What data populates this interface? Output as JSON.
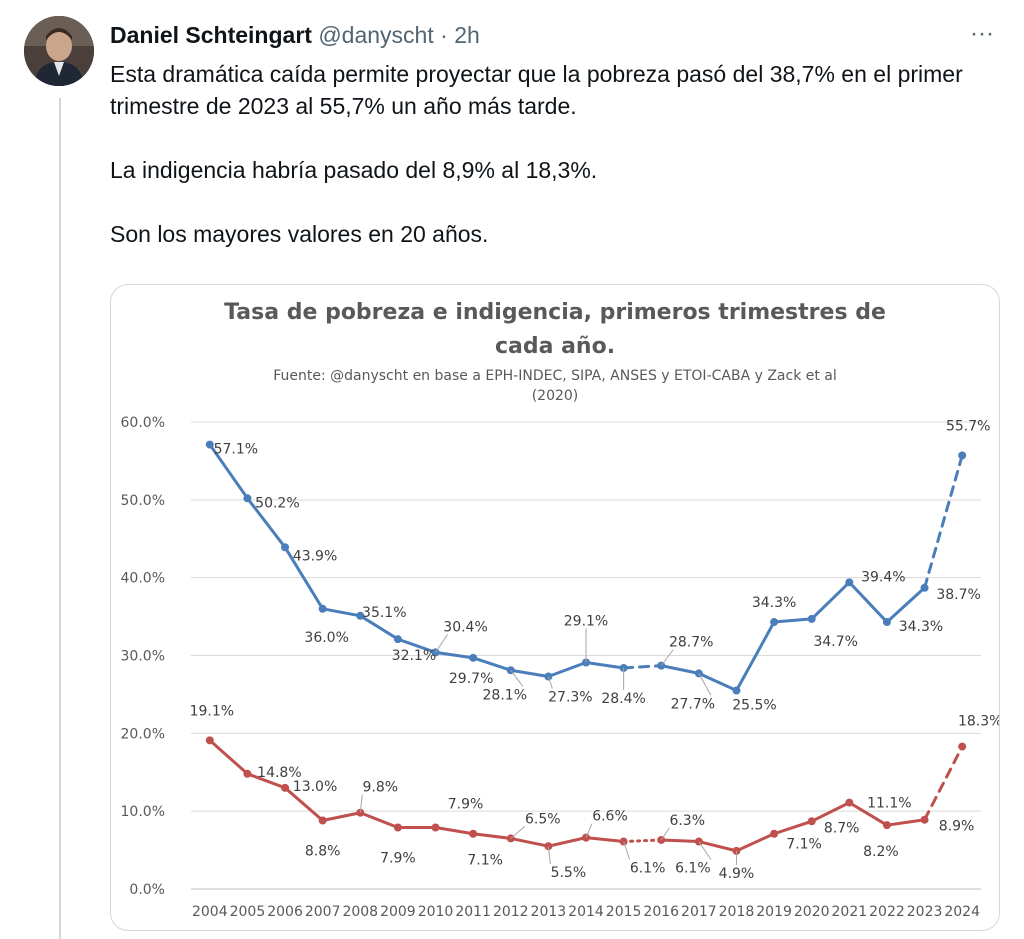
{
  "tweet": {
    "author_name": "Daniel Schteingart",
    "handle": "@danyscht",
    "separator": "·",
    "time": "2h",
    "more_label": "···",
    "paragraphs": [
      "Esta dramática caída permite proyectar que la pobreza pasó del 38,7% en el primer trimestre de 2023 al 55,7% un año más tarde.",
      "La indigencia habría pasado del 8,9% al 18,3%.",
      "Son los mayores valores en 20 años."
    ]
  },
  "colors": {
    "poverty": "#4a7ebb",
    "indigence": "#c0504d",
    "grid": "#d9d9d9",
    "title": "#595959"
  },
  "chart_data": {
    "type": "line",
    "title_lines": [
      "Tasa de pobreza e indigencia, primeros trimestres de",
      "cada año."
    ],
    "subtitle_lines": [
      "Fuente: @danyscht en base a EPH-INDEC, SIPA, ANSES y ETOI-CABA y Zack et al",
      "(2020)"
    ],
    "xlabel": "",
    "ylabel": "",
    "ylim": [
      0,
      60
    ],
    "yticks": [
      "0.0%",
      "10.0%",
      "20.0%",
      "30.0%",
      "40.0%",
      "50.0%",
      "60.0%"
    ],
    "categories": [
      "2004",
      "2005",
      "2006",
      "2007",
      "2008",
      "2009",
      "2010",
      "2011",
      "2012",
      "2013",
      "2014",
      "2015",
      "2016",
      "2017",
      "2018",
      "2019",
      "2020",
      "2021",
      "2022",
      "2023",
      "2024"
    ],
    "legend": "none",
    "grid": true,
    "series": [
      {
        "key": "poverty",
        "values": [
          57.1,
          50.2,
          43.9,
          36.0,
          35.1,
          32.1,
          30.4,
          29.7,
          28.1,
          27.3,
          29.1,
          28.4,
          28.7,
          27.7,
          25.5,
          34.3,
          34.7,
          39.4,
          34.3,
          38.7,
          55.7
        ],
        "labels": [
          "57.1%",
          "50.2%",
          "43.9%",
          "36.0%",
          "35.1%",
          "32.1%",
          "30.4%",
          "29.7%",
          "28.1%",
          "27.3%",
          "29.1%",
          "28.4%",
          "28.7%",
          "27.7%",
          "25.5%",
          "34.3%",
          "34.7%",
          "39.4%",
          "34.3%",
          "38.7%",
          "55.7%"
        ],
        "dashed_segments": [
          11,
          19
        ]
      },
      {
        "key": "indigence",
        "values": [
          19.1,
          14.8,
          13.0,
          8.8,
          9.8,
          7.9,
          7.9,
          7.1,
          6.5,
          5.5,
          6.6,
          6.1,
          6.3,
          6.1,
          4.9,
          7.1,
          8.7,
          11.1,
          8.2,
          8.9,
          18.3
        ],
        "labels": [
          "19.1%",
          "14.8%",
          "13.0%",
          "8.8%",
          "9.8%",
          "7.9%",
          "7.9%",
          "7.1%",
          "6.5%",
          "5.5%",
          "6.6%",
          "6.1%",
          "6.3%",
          "6.1%",
          "4.9%",
          "7.1%",
          "8.7%",
          "11.1%",
          "8.2%",
          "8.9%",
          "18.3%"
        ],
        "dotted_segments": [
          11
        ],
        "dashed_segments": [
          19
        ]
      }
    ]
  }
}
